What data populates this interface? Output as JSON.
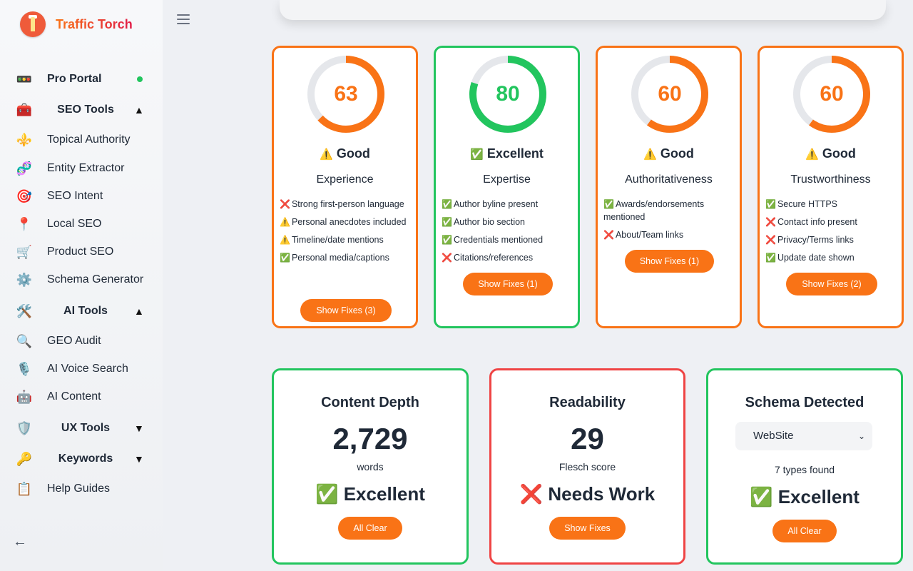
{
  "brand": {
    "name": "Traffic Torch"
  },
  "sidebar": {
    "items": [
      {
        "label": "Pro Portal",
        "icon": "traffic-light-icon",
        "glyph": "🚥"
      },
      {
        "label": "SEO Tools",
        "icon": "toolbox-icon",
        "glyph": "🧰",
        "caret": "▲"
      },
      {
        "label": "Topical Authority",
        "icon": "fleur-de-lis-icon",
        "glyph": "⚜️"
      },
      {
        "label": "Entity Extractor",
        "icon": "dna-icon",
        "glyph": "🧬"
      },
      {
        "label": "SEO Intent",
        "icon": "target-icon",
        "glyph": "🎯"
      },
      {
        "label": "Local SEO",
        "icon": "pin-icon",
        "glyph": "📍"
      },
      {
        "label": "Product SEO",
        "icon": "cart-icon",
        "glyph": "🛒"
      },
      {
        "label": "Schema Generator",
        "icon": "gear-icon",
        "glyph": "⚙️"
      },
      {
        "label": "AI Tools",
        "icon": "tools-icon",
        "glyph": "🛠️",
        "caret": "▲"
      },
      {
        "label": "GEO Audit",
        "icon": "magnifier-icon",
        "glyph": "🔍"
      },
      {
        "label": "AI Voice Search",
        "icon": "microphone-icon",
        "glyph": "🎙️"
      },
      {
        "label": "AI Content",
        "icon": "robot-icon",
        "glyph": "🤖"
      },
      {
        "label": "UX Tools",
        "icon": "shield-icon",
        "glyph": "🛡️",
        "caret": "▼"
      },
      {
        "label": "Keywords",
        "icon": "key-icon",
        "glyph": "🔑",
        "caret": "▼"
      },
      {
        "label": "Help Guides",
        "icon": "clipboard-icon",
        "glyph": "📋"
      }
    ],
    "collapse_glyph": "←"
  },
  "eeat": [
    {
      "score": 63,
      "grade_icon": "⚠️",
      "grade": "Good",
      "category": "Experience",
      "color": "#f97316",
      "checks": [
        {
          "mark": "❌",
          "text": "Strong first-person language"
        },
        {
          "mark": "⚠️",
          "text": "Personal anecdotes included"
        },
        {
          "mark": "⚠️",
          "text": "Timeline/date mentions"
        },
        {
          "mark": "✅",
          "text": "Personal media/captions"
        }
      ],
      "button": "Show Fixes (3)"
    },
    {
      "score": 80,
      "grade_icon": "✅",
      "grade": "Excellent",
      "category": "Expertise",
      "color": "#22c55e",
      "checks": [
        {
          "mark": "✅",
          "text": "Author byline present"
        },
        {
          "mark": "✅",
          "text": "Author bio section"
        },
        {
          "mark": "✅",
          "text": "Credentials mentioned"
        },
        {
          "mark": "❌",
          "text": "Citations/references"
        }
      ],
      "button": "Show Fixes (1)"
    },
    {
      "score": 60,
      "grade_icon": "⚠️",
      "grade": "Good",
      "category": "Authoritativeness",
      "color": "#f97316",
      "checks": [
        {
          "mark": "✅",
          "text": "Awards/endorsements mentioned"
        },
        {
          "mark": "❌",
          "text": "About/Team links"
        }
      ],
      "button": "Show Fixes (1)"
    },
    {
      "score": 60,
      "grade_icon": "⚠️",
      "grade": "Good",
      "category": "Trustworthiness",
      "color": "#f97316",
      "checks": [
        {
          "mark": "✅",
          "text": "Secure HTTPS"
        },
        {
          "mark": "❌",
          "text": "Contact info present"
        },
        {
          "mark": "❌",
          "text": "Privacy/Terms links"
        },
        {
          "mark": "✅",
          "text": "Update date shown"
        }
      ],
      "button": "Show Fixes (2)"
    }
  ],
  "metrics": {
    "content_depth": {
      "title": "Content Depth",
      "value": "2,729",
      "unit": "words",
      "status_icon": "✅",
      "status": "Excellent",
      "button": "All Clear"
    },
    "readability": {
      "title": "Readability",
      "value": "29",
      "unit": "Flesch score",
      "status_icon": "❌",
      "status": "Needs Work",
      "button": "Show Fixes"
    },
    "schema": {
      "title": "Schema Detected",
      "selected": "WebSite",
      "found": "7 types found",
      "status_icon": "✅",
      "status": "Excellent",
      "button": "All Clear"
    }
  }
}
